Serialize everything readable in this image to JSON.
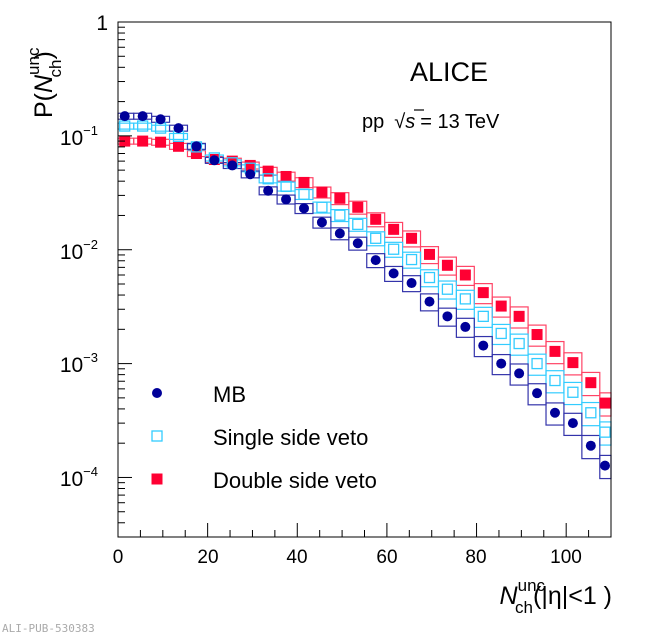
{
  "watermark": "ALI-PUB-530383",
  "chart_data": {
    "type": "scatter",
    "title": "ALICE",
    "subtitle": {
      "system": "pp",
      "sqrt": "√",
      "s": "s",
      "energy": "= 13 TeV"
    },
    "xlabel": {
      "main": "N",
      "sub": "ch",
      "sup": "unc",
      "suffix": "(|η|<1 )"
    },
    "ylabel": {
      "prefix": "P(",
      "main": "N",
      "sub": "ch",
      "sup": "unc",
      "suffix": ")"
    },
    "xlim": [
      0,
      110
    ],
    "ylim": [
      3e-05,
      1
    ],
    "yscale": "log",
    "xticks": [
      "0",
      "20",
      "40",
      "60",
      "80",
      "100"
    ],
    "yticks": [
      {
        "base": "1",
        "exp": ""
      },
      {
        "base": "10",
        "exp": "−1"
      },
      {
        "base": "10",
        "exp": "−2"
      },
      {
        "base": "10",
        "exp": "−3"
      },
      {
        "base": "10",
        "exp": "−4"
      }
    ],
    "legend": "bottom-left",
    "x": [
      1.5,
      5.5,
      9.5,
      13.5,
      17.5,
      21.5,
      25.5,
      29.5,
      33.5,
      37.5,
      41.5,
      45.5,
      49.5,
      53.5,
      57.5,
      61.5,
      65.5,
      69.5,
      73.5,
      77.5,
      81.5,
      85.5,
      89.5,
      93.5,
      97.5,
      101.5,
      105.5,
      109.5
    ],
    "sys_rel": [
      0.06,
      0.06,
      0.06,
      0.06,
      0.06,
      0.06,
      0.06,
      0.07,
      0.08,
      0.09,
      0.1,
      0.11,
      0.12,
      0.13,
      0.14,
      0.15,
      0.16,
      0.17,
      0.18,
      0.19,
      0.2,
      0.2,
      0.21,
      0.21,
      0.22,
      0.22,
      0.23,
      0.23
    ],
    "series": [
      {
        "name": "MB",
        "marker": "circle",
        "color": "#000099",
        "box_color": "#3333aa",
        "values": [
          0.149,
          0.149,
          0.14,
          0.117,
          0.081,
          0.061,
          0.055,
          0.046,
          0.033,
          0.0277,
          0.0231,
          0.0174,
          0.0139,
          0.0114,
          0.0081,
          0.0062,
          0.0051,
          0.0035,
          0.0026,
          0.0021,
          0.00144,
          0.001,
          0.00082,
          0.00055,
          0.00037,
          0.0003,
          0.00019,
          0.000127
        ]
      },
      {
        "name": "Single side veto",
        "marker": "open-square",
        "color": "#33ccff",
        "box_color": "#33ccff",
        "values": [
          0.122,
          0.122,
          0.117,
          0.099,
          0.08,
          0.064,
          0.058,
          0.052,
          0.042,
          0.036,
          0.0307,
          0.0236,
          0.0201,
          0.0167,
          0.0126,
          0.0101,
          0.0082,
          0.0057,
          0.0045,
          0.0037,
          0.0026,
          0.00184,
          0.0015,
          0.001,
          0.00071,
          0.00056,
          0.00037,
          0.00025
        ]
      },
      {
        "name": "Double side veto",
        "marker": "square",
        "color": "#ff0033",
        "box_color": "#ff4466",
        "values": [
          0.09,
          0.09,
          0.088,
          0.081,
          0.07,
          0.062,
          0.06,
          0.055,
          0.049,
          0.044,
          0.039,
          0.032,
          0.0283,
          0.0236,
          0.0185,
          0.0151,
          0.0126,
          0.0091,
          0.0073,
          0.006,
          0.0042,
          0.0032,
          0.0026,
          0.0018,
          0.00128,
          0.00102,
          0.00068,
          0.00045
        ]
      }
    ]
  }
}
